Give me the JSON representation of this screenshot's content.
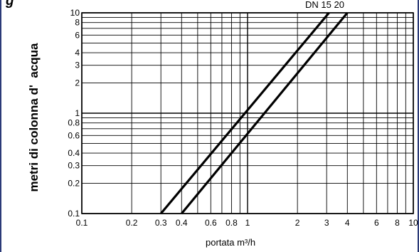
{
  "chart_data": {
    "type": "line",
    "title": "g",
    "series_note": "DN 15 20",
    "xlabel": "portata m³/h",
    "ylabel": "metri di colonna d'  acqua",
    "xscale": "log",
    "yscale": "log",
    "xlim": [
      0.1,
      10
    ],
    "ylim": [
      0.1,
      10
    ],
    "x_ticks": [
      {
        "value": 0.1,
        "label": "0.1"
      },
      {
        "value": 0.2,
        "label": "0.2"
      },
      {
        "value": 0.3,
        "label": "0.3"
      },
      {
        "value": 0.4,
        "label": "0.4"
      },
      {
        "value": 0.6,
        "label": "0.6"
      },
      {
        "value": 0.8,
        "label": "0.8"
      },
      {
        "value": 1,
        "label": "1"
      },
      {
        "value": 2,
        "label": "2"
      },
      {
        "value": 3,
        "label": "3"
      },
      {
        "value": 4,
        "label": "4"
      },
      {
        "value": 6,
        "label": "6"
      },
      {
        "value": 8,
        "label": "8"
      },
      {
        "value": 10,
        "label": "10"
      }
    ],
    "y_ticks": [
      {
        "value": 0.1,
        "label": "0.1"
      },
      {
        "value": 0.2,
        "label": "0.2"
      },
      {
        "value": 0.3,
        "label": "0.3"
      },
      {
        "value": 0.4,
        "label": "0.4"
      },
      {
        "value": 0.6,
        "label": "0.6"
      },
      {
        "value": 0.8,
        "label": "0.8"
      },
      {
        "value": 1,
        "label": "1"
      },
      {
        "value": 2,
        "label": "2"
      },
      {
        "value": 3,
        "label": "3"
      },
      {
        "value": 4,
        "label": "4"
      },
      {
        "value": 6,
        "label": "6"
      },
      {
        "value": 8,
        "label": "8"
      },
      {
        "value": 10,
        "label": "10"
      }
    ],
    "series": [
      {
        "x": [
          0.3,
          3.1
        ],
        "y": [
          0.1,
          10
        ],
        "color": "#000000"
      },
      {
        "x": [
          0.4,
          4.0
        ],
        "y": [
          0.1,
          10
        ],
        "color": "#000000"
      }
    ],
    "grid": true
  }
}
